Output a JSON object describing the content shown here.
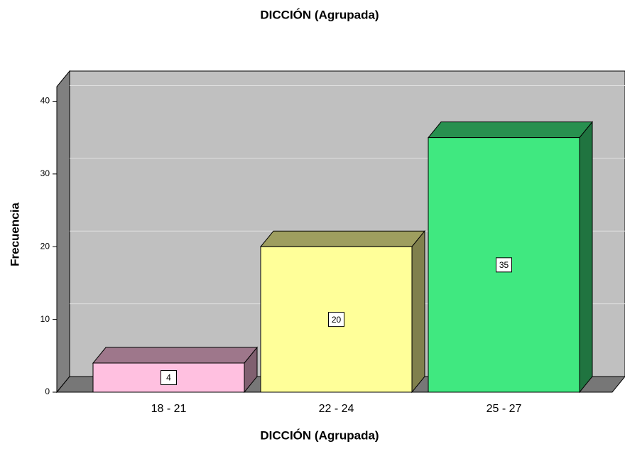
{
  "chart_data": {
    "type": "bar3d",
    "title": "DICCIÓN (Agrupada)",
    "x_label": "DICCIÓN (Agrupada)",
    "y_label": "Frecuencia",
    "categories": [
      "18 - 21",
      "22 - 24",
      "25 - 27"
    ],
    "values": [
      4,
      20,
      35
    ],
    "colors": [
      "#ffc0e0",
      "#ffff99",
      "#40e880"
    ],
    "ylim": [
      0,
      42
    ],
    "yticks": [
      0,
      10,
      20,
      30,
      40
    ],
    "grid": true
  }
}
